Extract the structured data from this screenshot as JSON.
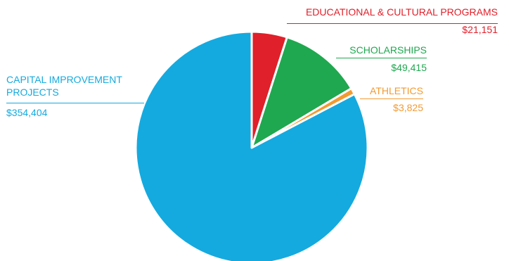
{
  "chart_data": {
    "type": "pie",
    "title": "",
    "legend": "none",
    "slices": [
      {
        "label_lines": [
          "EDUCATIONAL & CULTURAL PROGRAMS"
        ],
        "value": 21151,
        "value_label": "$21,151",
        "color": "#e0202a"
      },
      {
        "label_lines": [
          "SCHOLARSHIPS"
        ],
        "value": 49415,
        "value_label": "$49,415",
        "color": "#1fa84f"
      },
      {
        "label_lines": [
          "ATHLETICS"
        ],
        "value": 3825,
        "value_label": "$3,825",
        "color": "#f39a31"
      },
      {
        "label_lines": [
          "CAPITAL IMPROVEMENT",
          "PROJECTS"
        ],
        "value": 354404,
        "value_label": "$354,404",
        "color": "#14aadf"
      }
    ]
  }
}
